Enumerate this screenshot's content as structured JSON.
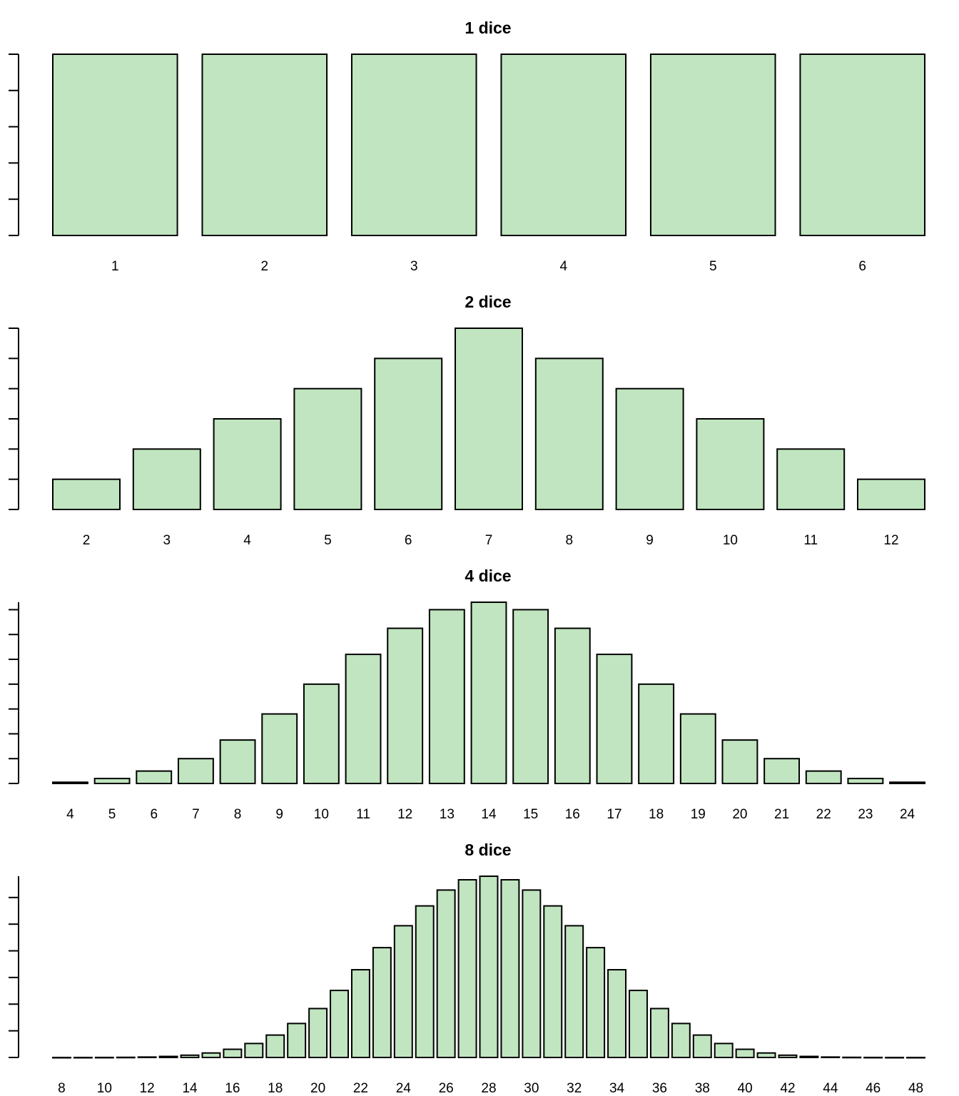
{
  "chart_data": [
    {
      "type": "bar",
      "title": "1 dice",
      "xlabel": "",
      "ylabel": "",
      "categories": [
        "1",
        "2",
        "3",
        "4",
        "5",
        "6"
      ],
      "values": [
        1,
        1,
        1,
        1,
        1,
        1
      ],
      "tick_labels": [
        "1",
        "2",
        "3",
        "4",
        "5",
        "6"
      ],
      "ylim": [
        0,
        1
      ],
      "y_ticks": 6,
      "y_tick_labels_shown": false,
      "grid": false,
      "bar_color": "#c0e5c0"
    },
    {
      "type": "bar",
      "title": "2 dice",
      "xlabel": "",
      "ylabel": "",
      "categories": [
        "2",
        "3",
        "4",
        "5",
        "6",
        "7",
        "8",
        "9",
        "10",
        "11",
        "12"
      ],
      "values": [
        1,
        2,
        3,
        4,
        5,
        6,
        5,
        4,
        3,
        2,
        1
      ],
      "tick_labels": [
        "2",
        "3",
        "4",
        "5",
        "6",
        "7",
        "8",
        "9",
        "10",
        "11",
        "12"
      ],
      "ylim": [
        0,
        6
      ],
      "y_ticks": 7,
      "y_tick_labels_shown": false,
      "grid": false,
      "bar_color": "#c0e5c0"
    },
    {
      "type": "bar",
      "title": "4 dice",
      "xlabel": "",
      "ylabel": "",
      "categories": [
        "4",
        "5",
        "6",
        "7",
        "8",
        "9",
        "10",
        "11",
        "12",
        "13",
        "14",
        "15",
        "16",
        "17",
        "18",
        "19",
        "20",
        "21",
        "22",
        "23",
        "24"
      ],
      "values": [
        1,
        4,
        10,
        20,
        35,
        56,
        80,
        104,
        125,
        140,
        146,
        140,
        125,
        104,
        80,
        56,
        35,
        20,
        10,
        4,
        1
      ],
      "tick_labels": [
        "4",
        "5",
        "6",
        "7",
        "8",
        "9",
        "10",
        "11",
        "12",
        "13",
        "14",
        "15",
        "16",
        "17",
        "18",
        "19",
        "20",
        "21",
        "22",
        "23",
        "24"
      ],
      "ylim": [
        0,
        146
      ],
      "y_ticks": 8,
      "y_tick_labels_shown": false,
      "grid": false,
      "bar_color": "#c0e5c0"
    },
    {
      "type": "bar",
      "title": "8 dice",
      "xlabel": "",
      "ylabel": "",
      "categories": [
        "8",
        "9",
        "10",
        "11",
        "12",
        "13",
        "14",
        "15",
        "16",
        "17",
        "18",
        "19",
        "20",
        "21",
        "22",
        "23",
        "24",
        "25",
        "26",
        "27",
        "28",
        "29",
        "30",
        "31",
        "32",
        "33",
        "34",
        "35",
        "36",
        "37",
        "38",
        "39",
        "40",
        "41",
        "42",
        "43",
        "44",
        "45",
        "46",
        "47",
        "48"
      ],
      "values": [
        1,
        8,
        36,
        120,
        330,
        792,
        1708,
        3368,
        6147,
        10480,
        16808,
        25488,
        36688,
        50288,
        65808,
        82384,
        98813,
        113688,
        125588,
        133288,
        135954,
        133288,
        125588,
        113688,
        98813,
        82384,
        65808,
        50288,
        36688,
        25488,
        16808,
        10480,
        6147,
        3368,
        1708,
        792,
        330,
        120,
        36,
        8,
        1
      ],
      "tick_labels": [
        "8",
        "10",
        "12",
        "14",
        "16",
        "18",
        "20",
        "22",
        "24",
        "26",
        "28",
        "30",
        "32",
        "34",
        "36",
        "38",
        "40",
        "42",
        "44",
        "46",
        "48"
      ],
      "ylim": [
        0,
        135954
      ],
      "y_ticks": 7,
      "y_tick_labels_shown": false,
      "grid": false,
      "bar_color": "#c0e5c0"
    }
  ]
}
